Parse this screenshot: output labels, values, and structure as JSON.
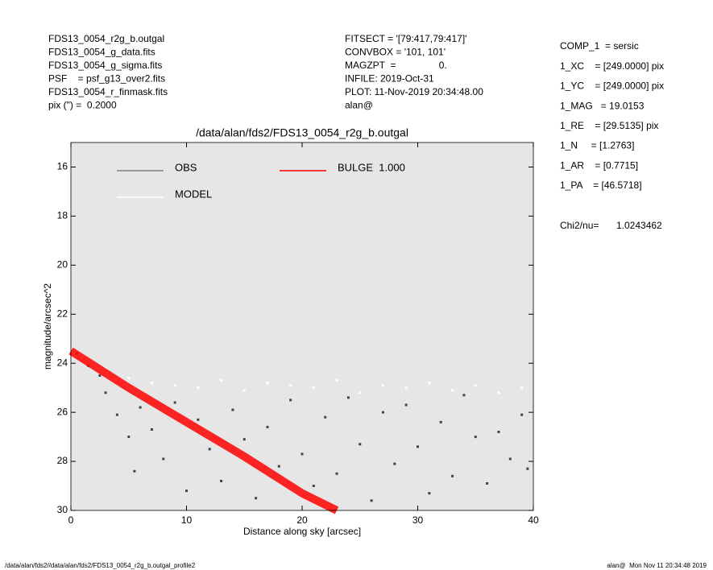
{
  "header": {
    "left": [
      "FDS13_0054_r2g_b.outgal",
      "FDS13_0054_g_data.fits",
      "FDS13_0054_g_sigma.fits",
      "PSF    = psf_g13_over2.fits",
      "FDS13_0054_r_finmask.fits",
      "pix (\") =  0.2000"
    ],
    "middle": [
      "FITSECT = '[79:417,79:417]'",
      "CONVBOX = '101, 101'",
      "MAGZPT  =                0.",
      "INFILE: 2019-Oct-31",
      "PLOT: 11-Nov-2019 20:34:48.00",
      "alan@"
    ],
    "right": [
      "COMP_1  = sersic",
      "1_XC    = [249.0000] pix",
      "1_YC    = [249.0000] pix",
      "1_MAG   = 19.0153",
      "1_RE    = [29.5135] pix",
      "1_N     = [1.2763]",
      "1_AR    = [0.7715]",
      "1_PA    = [46.5718]"
    ],
    "chi2_label": "Chi2/nu=",
    "chi2_value": "1.0243462"
  },
  "footer": {
    "left": "/data/alan/fds2//data/alan/fds2/FDS13_0054_r2g_b.outgal_profile2",
    "right": "alan@  Mon Nov 11 20:34:48 2019"
  },
  "chart_data": {
    "type": "scatter",
    "title": "/data/alan/fds2/FDS13_0054_r2g_b.outgal",
    "x_label": "Distance along sky [arcsec]",
    "y_label": "magnitude/arcsec^2",
    "xlim": [
      0,
      40
    ],
    "xticks": [
      0,
      10,
      20,
      30,
      40
    ],
    "ylim": [
      30,
      15
    ],
    "yticks": [
      16,
      18,
      20,
      22,
      24,
      26,
      28,
      30
    ],
    "background": "#e6e6e6",
    "series": [
      {
        "name": "OBS",
        "color": "#808080",
        "point_color": "#444444",
        "x": [
          0.5,
          1.5,
          2.5,
          3,
          4,
          5,
          5.5,
          6,
          7,
          8,
          9,
          10,
          11,
          12,
          13,
          14,
          15,
          16,
          17,
          18,
          19,
          20,
          21,
          22,
          23,
          24,
          25,
          26,
          27,
          28,
          29,
          30,
          31,
          32,
          33,
          34,
          35,
          36,
          37,
          38,
          39,
          39.5
        ],
        "values": [
          23.6,
          24.1,
          24.5,
          25.2,
          26.1,
          27.0,
          28.4,
          25.8,
          26.7,
          27.9,
          25.6,
          29.2,
          26.3,
          27.5,
          28.8,
          25.9,
          27.1,
          29.5,
          26.6,
          28.2,
          25.5,
          27.7,
          29.0,
          26.2,
          28.5,
          25.4,
          27.3,
          29.6,
          26.0,
          28.1,
          25.7,
          27.4,
          29.3,
          26.4,
          28.6,
          25.3,
          27.0,
          28.9,
          26.8,
          27.9,
          26.1,
          28.3
        ]
      },
      {
        "name": "MODEL",
        "color": "#ffffff",
        "x": [
          1,
          3,
          5,
          7,
          9,
          11,
          13,
          15,
          17,
          19,
          21,
          23,
          25,
          27,
          29,
          31,
          33,
          35,
          37,
          39
        ],
        "values": [
          23.8,
          24.2,
          24.6,
          24.8,
          24.9,
          25.0,
          24.7,
          25.1,
          24.8,
          24.9,
          25.0,
          24.7,
          25.2,
          24.9,
          25.0,
          24.8,
          25.1,
          24.9,
          25.2,
          25.0
        ]
      },
      {
        "name": "BULGE  1.000",
        "color": "#ff0000",
        "type": "line",
        "x": [
          0,
          5,
          10,
          15,
          20,
          23
        ],
        "values": [
          23.5,
          25.0,
          26.4,
          27.8,
          29.3,
          30.0
        ]
      }
    ]
  }
}
